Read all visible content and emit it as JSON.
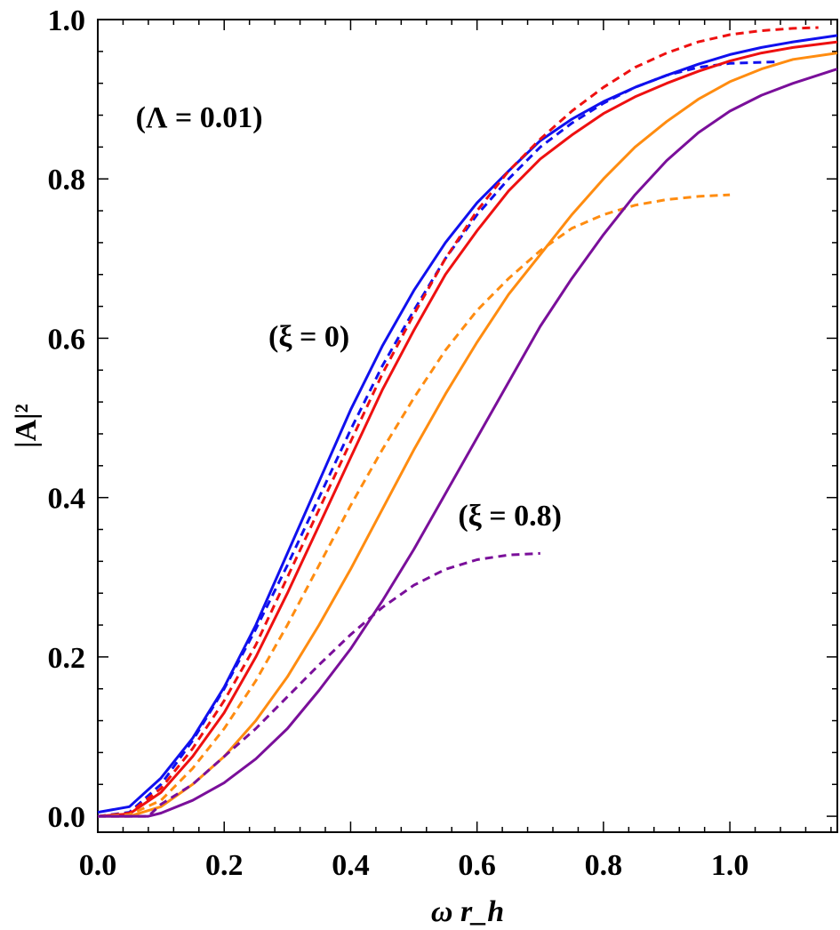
{
  "chart_data": {
    "type": "line",
    "title": "",
    "xlabel": "ω r_h",
    "ylabel": "|A|²",
    "xlim": [
      0,
      1.17
    ],
    "ylim": [
      -0.02,
      1.0
    ],
    "x_ticks": [
      "0.0",
      "0.2",
      "0.4",
      "0.6",
      "0.8",
      "1.0"
    ],
    "y_ticks": [
      "0.0",
      "0.2",
      "0.4",
      "0.6",
      "0.8",
      "1.0"
    ],
    "grid": false,
    "legend": "none",
    "annotations": [
      {
        "text": "(Λ = 0.01)",
        "x": 0.06,
        "y": 0.865
      },
      {
        "text": "(ξ = 0)",
        "x": 0.27,
        "y": 0.59
      },
      {
        "text": "(ξ = 0.8)",
        "x": 0.57,
        "y": 0.365
      }
    ],
    "series": [
      {
        "color": "#1010ee",
        "dash": false,
        "x": [
          0.0,
          0.05,
          0.1,
          0.15,
          0.2,
          0.25,
          0.3,
          0.35,
          0.4,
          0.45,
          0.5,
          0.55,
          0.6,
          0.65,
          0.7,
          0.75,
          0.8,
          0.85,
          0.9,
          0.95,
          1.0,
          1.05,
          1.1,
          1.17
        ],
        "y": [
          0.005,
          0.012,
          0.048,
          0.098,
          0.162,
          0.24,
          0.33,
          0.42,
          0.51,
          0.59,
          0.66,
          0.72,
          0.77,
          0.81,
          0.848,
          0.875,
          0.897,
          0.915,
          0.93,
          0.944,
          0.956,
          0.965,
          0.972,
          0.98
        ]
      },
      {
        "color": "#1010ee",
        "dash": true,
        "x": [
          0.0,
          0.05,
          0.1,
          0.15,
          0.2,
          0.25,
          0.3,
          0.35,
          0.4,
          0.45,
          0.5,
          0.55,
          0.6,
          0.65,
          0.7,
          0.75,
          0.8,
          0.85,
          0.9,
          0.95,
          1.0,
          1.075
        ],
        "y": [
          0.0,
          0.005,
          0.04,
          0.095,
          0.16,
          0.235,
          0.315,
          0.4,
          0.485,
          0.565,
          0.635,
          0.7,
          0.755,
          0.8,
          0.84,
          0.87,
          0.895,
          0.915,
          0.93,
          0.94,
          0.945,
          0.947
        ]
      },
      {
        "color": "#ee1010",
        "dash": false,
        "x": [
          0.0,
          0.05,
          0.1,
          0.15,
          0.2,
          0.25,
          0.3,
          0.35,
          0.4,
          0.45,
          0.5,
          0.55,
          0.6,
          0.65,
          0.7,
          0.75,
          0.8,
          0.85,
          0.9,
          0.95,
          1.0,
          1.05,
          1.1,
          1.17
        ],
        "y": [
          0.0,
          0.003,
          0.03,
          0.075,
          0.13,
          0.2,
          0.28,
          0.365,
          0.45,
          0.535,
          0.61,
          0.68,
          0.735,
          0.785,
          0.825,
          0.855,
          0.882,
          0.903,
          0.92,
          0.935,
          0.948,
          0.958,
          0.965,
          0.972
        ]
      },
      {
        "color": "#ee1010",
        "dash": true,
        "x": [
          0.0,
          0.05,
          0.1,
          0.15,
          0.2,
          0.25,
          0.3,
          0.35,
          0.4,
          0.45,
          0.5,
          0.55,
          0.6,
          0.65,
          0.7,
          0.75,
          0.8,
          0.85,
          0.9,
          0.95,
          1.0,
          1.05,
          1.1,
          1.14
        ],
        "y": [
          0.0,
          0.004,
          0.035,
          0.085,
          0.145,
          0.215,
          0.3,
          0.385,
          0.47,
          0.555,
          0.63,
          0.7,
          0.76,
          0.81,
          0.85,
          0.885,
          0.915,
          0.94,
          0.958,
          0.972,
          0.981,
          0.986,
          0.989,
          0.99
        ]
      },
      {
        "color": "#ff8c10",
        "dash": false,
        "x": [
          0.0,
          0.05,
          0.1,
          0.15,
          0.2,
          0.25,
          0.3,
          0.35,
          0.4,
          0.45,
          0.5,
          0.55,
          0.6,
          0.65,
          0.7,
          0.75,
          0.8,
          0.85,
          0.9,
          0.95,
          1.0,
          1.05,
          1.1,
          1.17
        ],
        "y": [
          0.0,
          0.0,
          0.012,
          0.04,
          0.075,
          0.12,
          0.175,
          0.24,
          0.31,
          0.385,
          0.46,
          0.53,
          0.595,
          0.655,
          0.705,
          0.755,
          0.8,
          0.84,
          0.872,
          0.9,
          0.922,
          0.938,
          0.95,
          0.958
        ]
      },
      {
        "color": "#ff8c10",
        "dash": true,
        "x": [
          0.0,
          0.05,
          0.1,
          0.15,
          0.2,
          0.25,
          0.3,
          0.35,
          0.4,
          0.45,
          0.5,
          0.55,
          0.6,
          0.65,
          0.7,
          0.75,
          0.8,
          0.85,
          0.9,
          0.95,
          1.0
        ],
        "y": [
          0.0,
          0.002,
          0.02,
          0.06,
          0.11,
          0.17,
          0.24,
          0.315,
          0.39,
          0.46,
          0.525,
          0.585,
          0.635,
          0.675,
          0.71,
          0.738,
          0.755,
          0.767,
          0.774,
          0.778,
          0.78
        ]
      },
      {
        "color": "#7a0f9a",
        "dash": false,
        "x": [
          0.0,
          0.05,
          0.08,
          0.1,
          0.15,
          0.2,
          0.25,
          0.3,
          0.35,
          0.4,
          0.45,
          0.5,
          0.55,
          0.6,
          0.65,
          0.7,
          0.75,
          0.8,
          0.85,
          0.9,
          0.95,
          1.0,
          1.05,
          1.1,
          1.17
        ],
        "y": [
          0.0,
          0.0,
          0.0,
          0.004,
          0.02,
          0.042,
          0.072,
          0.11,
          0.158,
          0.21,
          0.27,
          0.335,
          0.405,
          0.475,
          0.545,
          0.615,
          0.675,
          0.73,
          0.78,
          0.823,
          0.858,
          0.885,
          0.905,
          0.92,
          0.938
        ]
      },
      {
        "color": "#7a0f9a",
        "dash": true,
        "x": [
          0.0,
          0.05,
          0.08,
          0.1,
          0.15,
          0.2,
          0.25,
          0.3,
          0.35,
          0.4,
          0.45,
          0.5,
          0.55,
          0.6,
          0.65,
          0.7
        ],
        "y": [
          0.0,
          0.0,
          0.0,
          0.015,
          0.04,
          0.075,
          0.11,
          0.15,
          0.19,
          0.228,
          0.262,
          0.29,
          0.31,
          0.322,
          0.328,
          0.33
        ]
      }
    ]
  }
}
